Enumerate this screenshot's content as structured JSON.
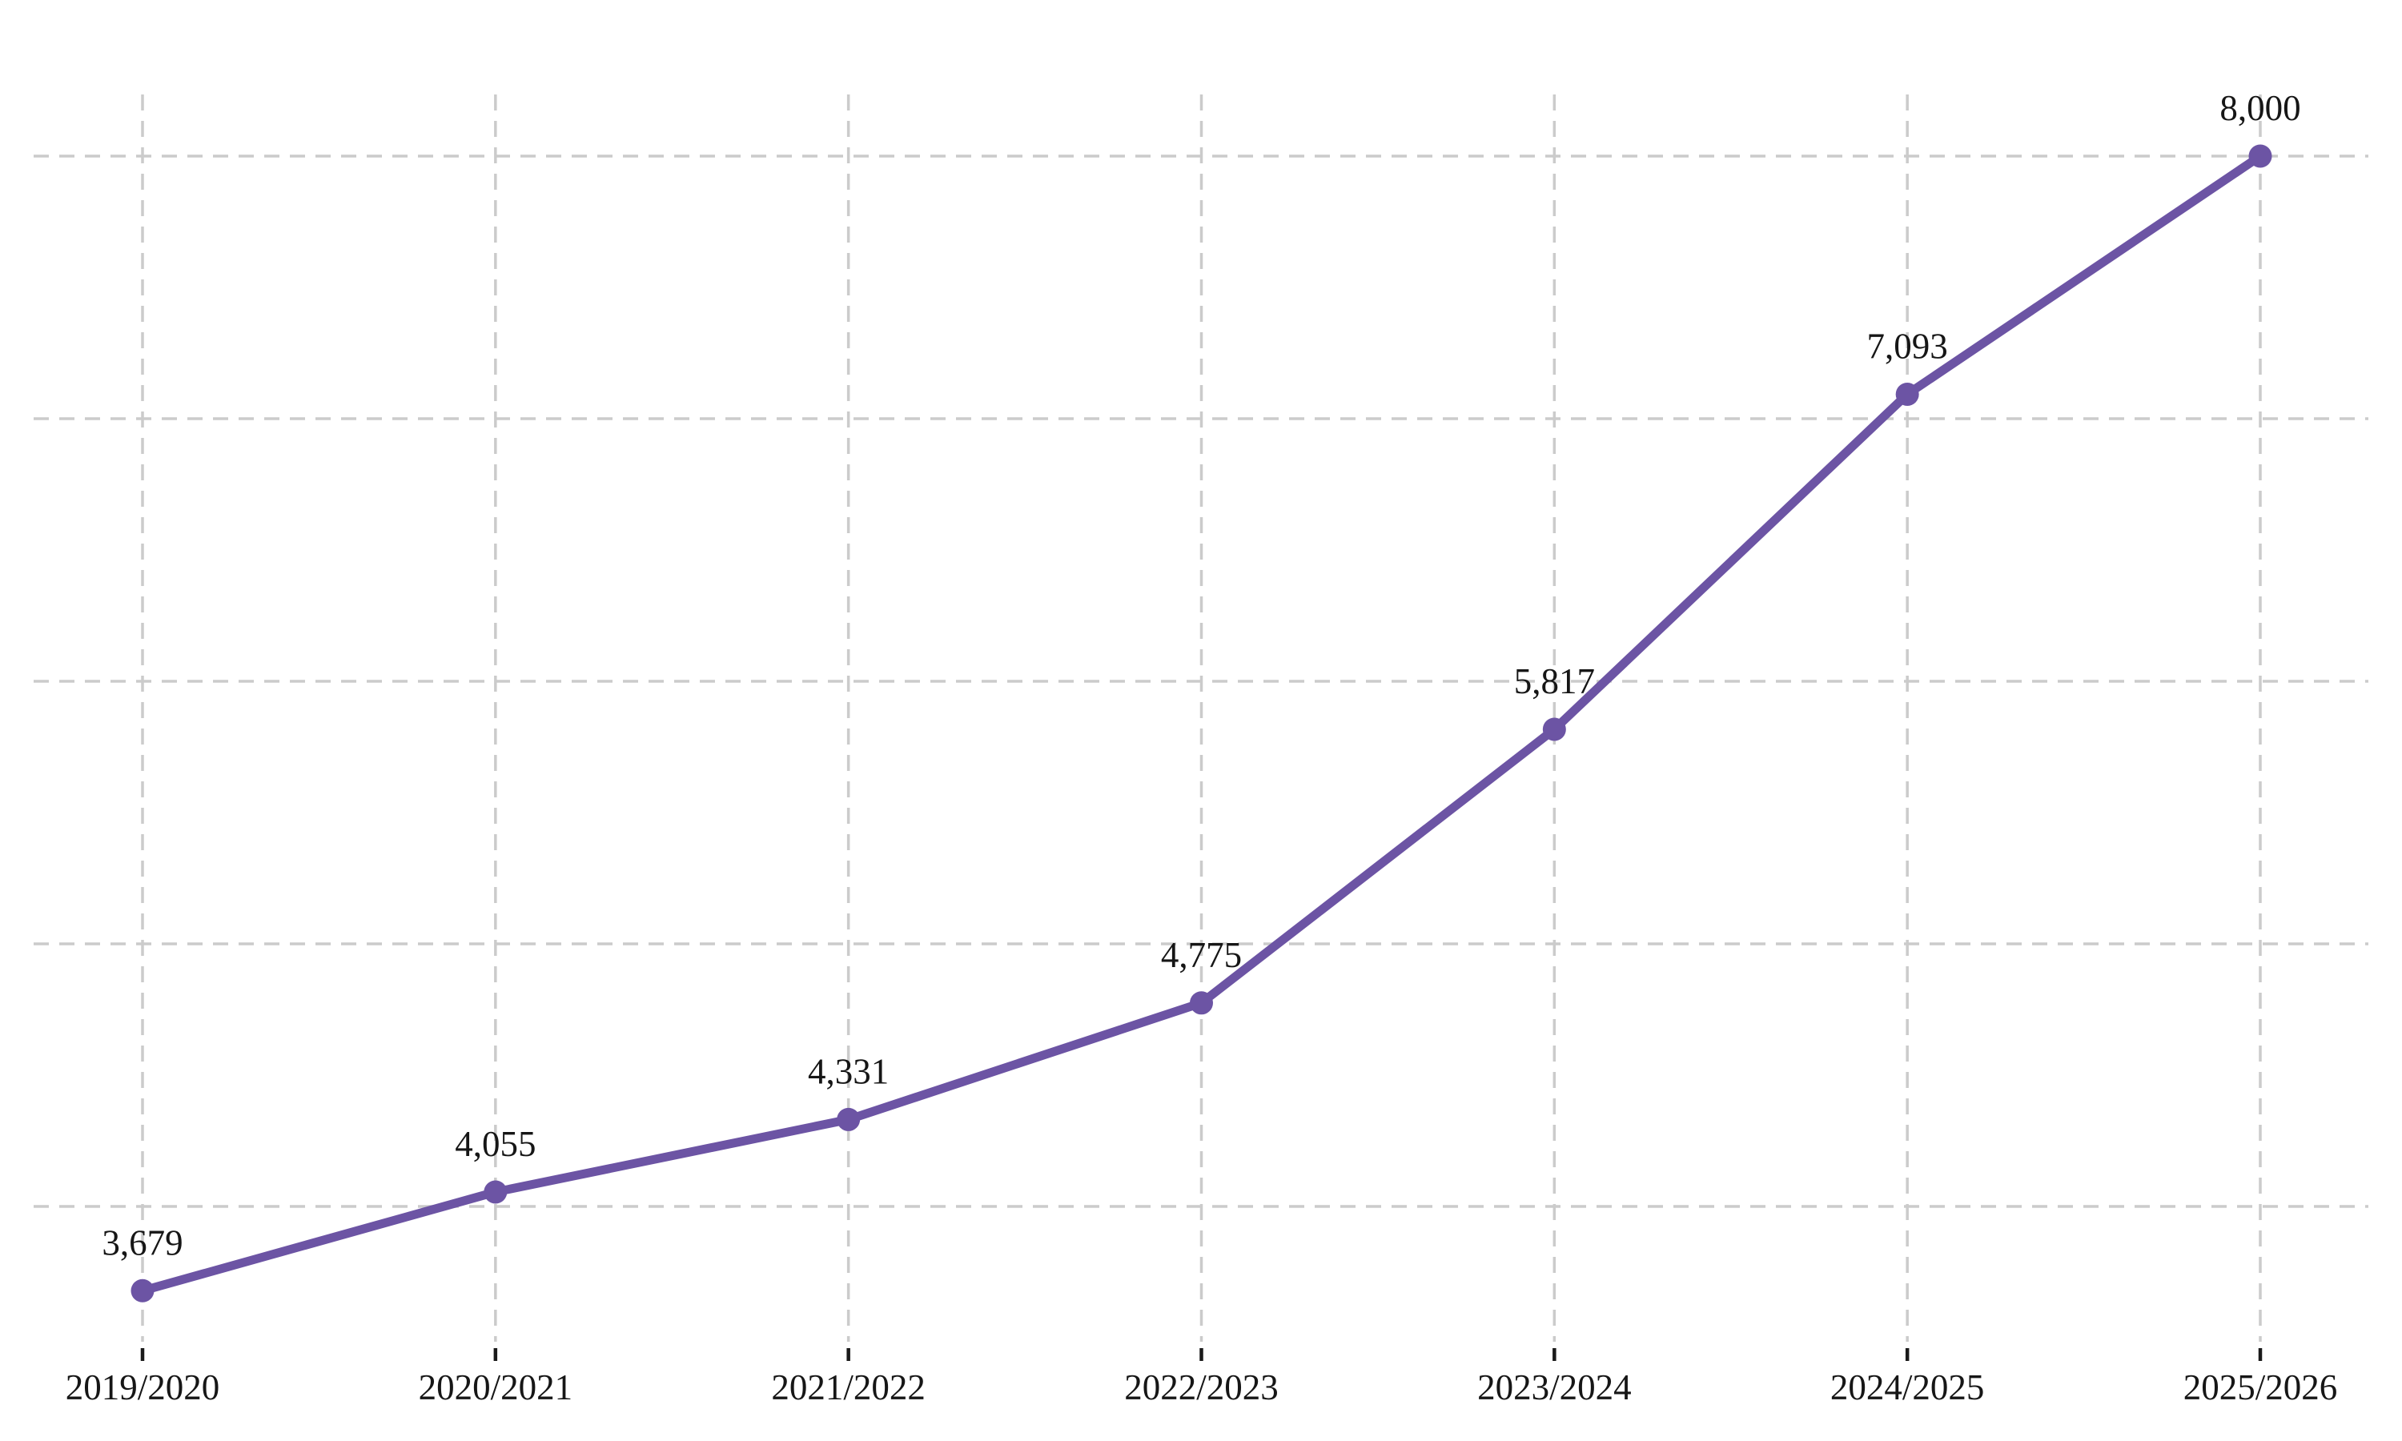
{
  "chart": {
    "accent_color": "#6c54a4",
    "grid_color": "#cbcbcb",
    "tick_color": "#1a1a1a",
    "text_color": "#161616",
    "background_color": "#ffffff"
  },
  "chart_data": {
    "type": "line",
    "title": "",
    "xlabel": "",
    "ylabel": "",
    "categories": [
      "2019/2020",
      "2020/2021",
      "2021/2022",
      "2022/2023",
      "2023/2024",
      "2024/2025",
      "2025/2026"
    ],
    "series": [
      {
        "name": "values-by-academic-year",
        "values": [
          3679,
          4055,
          4331,
          4775,
          5817,
          7093,
          8000
        ],
        "value_labels": [
          "3,679",
          "4,055",
          "4,331",
          "4,775",
          "5,817",
          "7,093",
          "8,000"
        ],
        "color": "#6c54a4",
        "marker": "circle"
      }
    ],
    "ylim": [
      3100,
      8600
    ],
    "y_gridline_values": [
      4000,
      5000,
      6000,
      7000,
      8000
    ],
    "y_axis_tick_labels_visible": false,
    "grid": "dashed",
    "legend": false,
    "value_labels_shown": true
  }
}
